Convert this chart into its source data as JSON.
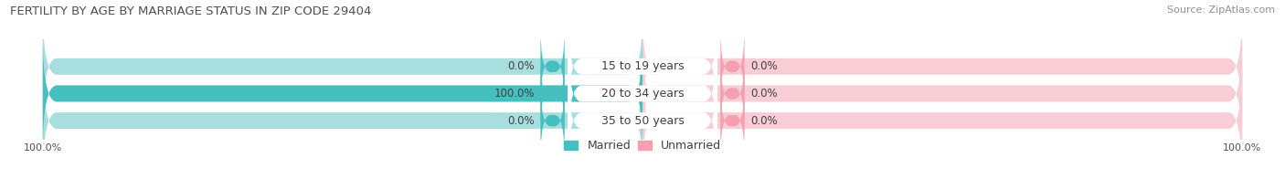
{
  "title": "FERTILITY BY AGE BY MARRIAGE STATUS IN ZIP CODE 29404",
  "source": "Source: ZipAtlas.com",
  "categories": [
    "15 to 19 years",
    "20 to 34 years",
    "35 to 50 years"
  ],
  "married_values": [
    0.0,
    100.0,
    0.0
  ],
  "unmarried_values": [
    0.0,
    0.0,
    0.0
  ],
  "married_color": "#45BFBF",
  "married_bg_color": "#a8dede",
  "unmarried_color": "#f4a0b0",
  "unmarried_bg_color": "#f9cdd6",
  "bar_bg_color": "#e8e8e8",
  "title_fontsize": 9.5,
  "source_fontsize": 8,
  "label_fontsize": 9,
  "value_fontsize": 8.5,
  "tick_fontsize": 8,
  "legend_fontsize": 9,
  "left_tick": "100.0%",
  "right_tick": "100.0%",
  "title_color": "#505050",
  "tick_color": "#505050",
  "text_color": "#404040",
  "source_color": "#909090"
}
